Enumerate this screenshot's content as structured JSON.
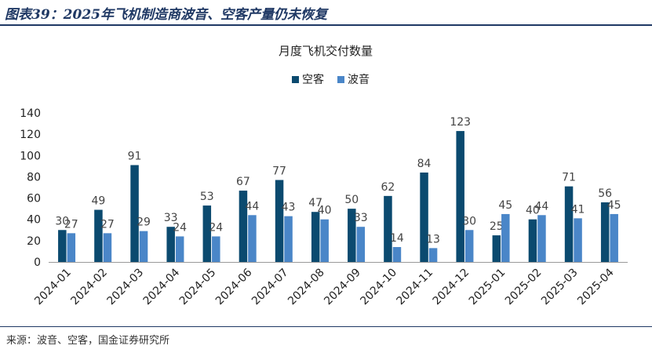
{
  "header": {
    "title": "图表39：2025年飞机制造商波音、空客产量仍未恢复"
  },
  "footer": {
    "source": "来源：波音、空客，国金证券研究所"
  },
  "colors": {
    "brand": "#1f3864",
    "airbus": "#0b4a6f",
    "boeing": "#4a86c8"
  },
  "chart_data": {
    "type": "bar",
    "title": "月度飞机交付数量",
    "categories": [
      "2024-01",
      "2024-02",
      "2024-03",
      "2024-04",
      "2024-05",
      "2024-06",
      "2024-07",
      "2024-08",
      "2024-09",
      "2024-10",
      "2024-11",
      "2024-12",
      "2025-01",
      "2025-02",
      "2025-03",
      "2025-04"
    ],
    "series": [
      {
        "name": "空客",
        "values": [
          30,
          49,
          91,
          33,
          53,
          67,
          77,
          47,
          50,
          62,
          84,
          123,
          25,
          40,
          71,
          56
        ]
      },
      {
        "name": "波音",
        "values": [
          27,
          27,
          29,
          24,
          24,
          44,
          43,
          40,
          33,
          14,
          13,
          30,
          45,
          44,
          41,
          45
        ]
      }
    ],
    "ylim": [
      0,
      140
    ],
    "yticks": [
      0,
      20,
      40,
      60,
      80,
      100,
      120,
      140
    ],
    "legend": "top-center",
    "grid": false
  }
}
